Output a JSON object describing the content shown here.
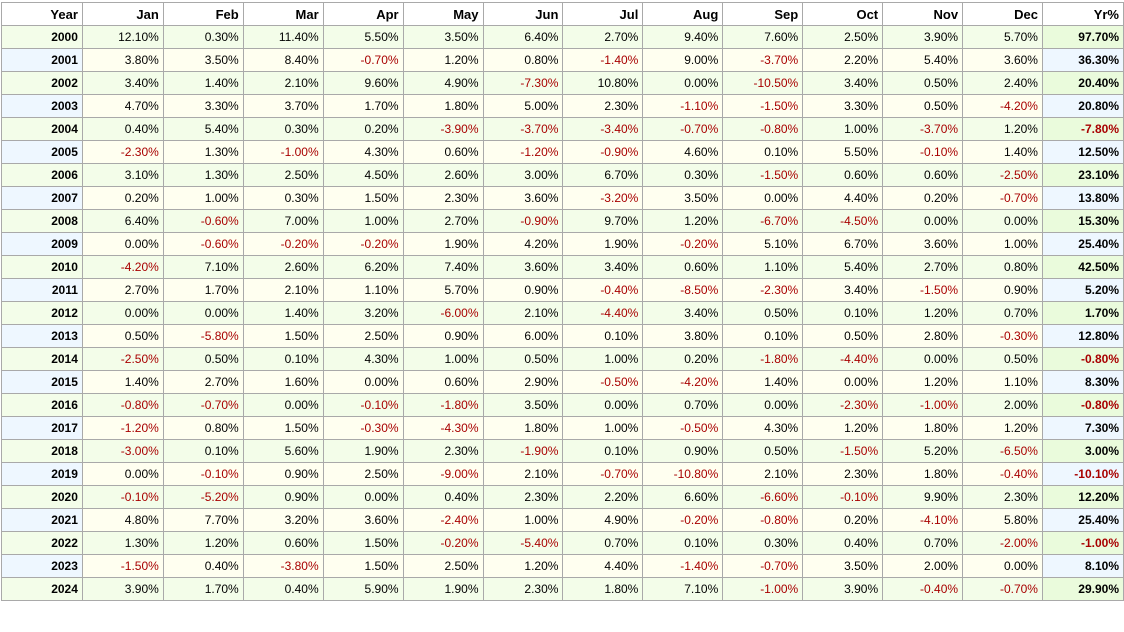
{
  "table": {
    "columns": [
      "Year",
      "Jan",
      "Feb",
      "Mar",
      "Apr",
      "May",
      "Jun",
      "Jul",
      "Aug",
      "Sep",
      "Oct",
      "Nov",
      "Dec",
      "Yr%"
    ],
    "rows": [
      {
        "year": "2000",
        "months": [
          "12.10%",
          "0.30%",
          "11.40%",
          "5.50%",
          "3.50%",
          "6.40%",
          "2.70%",
          "9.40%",
          "7.60%",
          "2.50%",
          "3.90%",
          "5.70%"
        ],
        "total": "97.70%"
      },
      {
        "year": "2001",
        "months": [
          "3.80%",
          "3.50%",
          "8.40%",
          "-0.70%",
          "1.20%",
          "0.80%",
          "-1.40%",
          "9.00%",
          "-3.70%",
          "2.20%",
          "5.40%",
          "3.60%"
        ],
        "total": "36.30%"
      },
      {
        "year": "2002",
        "months": [
          "3.40%",
          "1.40%",
          "2.10%",
          "9.60%",
          "4.90%",
          "-7.30%",
          "10.80%",
          "0.00%",
          "-10.50%",
          "3.40%",
          "0.50%",
          "2.40%"
        ],
        "total": "20.40%"
      },
      {
        "year": "2003",
        "months": [
          "4.70%",
          "3.30%",
          "3.70%",
          "1.70%",
          "1.80%",
          "5.00%",
          "2.30%",
          "-1.10%",
          "-1.50%",
          "3.30%",
          "0.50%",
          "-4.20%"
        ],
        "total": "20.80%"
      },
      {
        "year": "2004",
        "months": [
          "0.40%",
          "5.40%",
          "0.30%",
          "0.20%",
          "-3.90%",
          "-3.70%",
          "-3.40%",
          "-0.70%",
          "-0.80%",
          "1.00%",
          "-3.70%",
          "1.20%"
        ],
        "total": "-7.80%"
      },
      {
        "year": "2005",
        "months": [
          "-2.30%",
          "1.30%",
          "-1.00%",
          "4.30%",
          "0.60%",
          "-1.20%",
          "-0.90%",
          "4.60%",
          "0.10%",
          "5.50%",
          "-0.10%",
          "1.40%"
        ],
        "total": "12.50%"
      },
      {
        "year": "2006",
        "months": [
          "3.10%",
          "1.30%",
          "2.50%",
          "4.50%",
          "2.60%",
          "3.00%",
          "6.70%",
          "0.30%",
          "-1.50%",
          "0.60%",
          "0.60%",
          "-2.50%"
        ],
        "total": "23.10%"
      },
      {
        "year": "2007",
        "months": [
          "0.20%",
          "1.00%",
          "0.30%",
          "1.50%",
          "2.30%",
          "3.60%",
          "-3.20%",
          "3.50%",
          "0.00%",
          "4.40%",
          "0.20%",
          "-0.70%"
        ],
        "total": "13.80%"
      },
      {
        "year": "2008",
        "months": [
          "6.40%",
          "-0.60%",
          "7.00%",
          "1.00%",
          "2.70%",
          "-0.90%",
          "9.70%",
          "1.20%",
          "-6.70%",
          "-4.50%",
          "0.00%",
          "0.00%"
        ],
        "total": "15.30%"
      },
      {
        "year": "2009",
        "months": [
          "0.00%",
          "-0.60%",
          "-0.20%",
          "-0.20%",
          "1.90%",
          "4.20%",
          "1.90%",
          "-0.20%",
          "5.10%",
          "6.70%",
          "3.60%",
          "1.00%"
        ],
        "total": "25.40%"
      },
      {
        "year": "2010",
        "months": [
          "-4.20%",
          "7.10%",
          "2.60%",
          "6.20%",
          "7.40%",
          "3.60%",
          "3.40%",
          "0.60%",
          "1.10%",
          "5.40%",
          "2.70%",
          "0.80%"
        ],
        "total": "42.50%"
      },
      {
        "year": "2011",
        "months": [
          "2.70%",
          "1.70%",
          "2.10%",
          "1.10%",
          "5.70%",
          "0.90%",
          "-0.40%",
          "-8.50%",
          "-2.30%",
          "3.40%",
          "-1.50%",
          "0.90%"
        ],
        "total": "5.20%"
      },
      {
        "year": "2012",
        "months": [
          "0.00%",
          "0.00%",
          "1.40%",
          "3.20%",
          "-6.00%",
          "2.10%",
          "-4.40%",
          "3.40%",
          "0.50%",
          "0.10%",
          "1.20%",
          "0.70%"
        ],
        "total": "1.70%"
      },
      {
        "year": "2013",
        "months": [
          "0.50%",
          "-5.80%",
          "1.50%",
          "2.50%",
          "0.90%",
          "6.00%",
          "0.10%",
          "3.80%",
          "0.10%",
          "0.50%",
          "2.80%",
          "-0.30%"
        ],
        "total": "12.80%"
      },
      {
        "year": "2014",
        "months": [
          "-2.50%",
          "0.50%",
          "0.10%",
          "4.30%",
          "1.00%",
          "0.50%",
          "1.00%",
          "0.20%",
          "-1.80%",
          "-4.40%",
          "0.00%",
          "0.50%"
        ],
        "total": "-0.80%"
      },
      {
        "year": "2015",
        "months": [
          "1.40%",
          "2.70%",
          "1.60%",
          "0.00%",
          "0.60%",
          "2.90%",
          "-0.50%",
          "-4.20%",
          "1.40%",
          "0.00%",
          "1.20%",
          "1.10%"
        ],
        "total": "8.30%"
      },
      {
        "year": "2016",
        "months": [
          "-0.80%",
          "-0.70%",
          "0.00%",
          "-0.10%",
          "-1.80%",
          "3.50%",
          "0.00%",
          "0.70%",
          "0.00%",
          "-2.30%",
          "-1.00%",
          "2.00%"
        ],
        "total": "-0.80%"
      },
      {
        "year": "2017",
        "months": [
          "-1.20%",
          "0.80%",
          "1.50%",
          "-0.30%",
          "-4.30%",
          "1.80%",
          "1.00%",
          "-0.50%",
          "4.30%",
          "1.20%",
          "1.80%",
          "1.20%"
        ],
        "total": "7.30%"
      },
      {
        "year": "2018",
        "months": [
          "-3.00%",
          "0.10%",
          "5.60%",
          "1.90%",
          "2.30%",
          "-1.90%",
          "0.10%",
          "0.90%",
          "0.50%",
          "-1.50%",
          "5.20%",
          "-6.50%"
        ],
        "total": "3.00%"
      },
      {
        "year": "2019",
        "months": [
          "0.00%",
          "-0.10%",
          "0.90%",
          "2.50%",
          "-9.00%",
          "2.10%",
          "-0.70%",
          "-10.80%",
          "2.10%",
          "2.30%",
          "1.80%",
          "-0.40%"
        ],
        "total": "-10.10%"
      },
      {
        "year": "2020",
        "months": [
          "-0.10%",
          "-5.20%",
          "0.90%",
          "0.00%",
          "0.40%",
          "2.30%",
          "2.20%",
          "6.60%",
          "-6.60%",
          "-0.10%",
          "9.90%",
          "2.30%"
        ],
        "total": "12.20%"
      },
      {
        "year": "2021",
        "months": [
          "4.80%",
          "7.70%",
          "3.20%",
          "3.60%",
          "-2.40%",
          "1.00%",
          "4.90%",
          "-0.20%",
          "-0.80%",
          "0.20%",
          "-4.10%",
          "5.80%"
        ],
        "total": "25.40%"
      },
      {
        "year": "2022",
        "months": [
          "1.30%",
          "1.20%",
          "0.60%",
          "1.50%",
          "-0.20%",
          "-5.40%",
          "0.70%",
          "0.10%",
          "0.30%",
          "0.40%",
          "0.70%",
          "-2.00%"
        ],
        "total": "-1.00%"
      },
      {
        "year": "2023",
        "months": [
          "-1.50%",
          "0.40%",
          "-3.80%",
          "1.50%",
          "2.50%",
          "1.20%",
          "4.40%",
          "-1.40%",
          "-0.70%",
          "3.50%",
          "2.00%",
          "0.00%"
        ],
        "total": "8.10%"
      },
      {
        "year": "2024",
        "months": [
          "3.90%",
          "1.70%",
          "0.40%",
          "5.90%",
          "1.90%",
          "2.30%",
          "1.80%",
          "7.10%",
          "-1.00%",
          "3.90%",
          "-0.40%",
          "-0.70%"
        ],
        "total": "29.90%"
      }
    ]
  },
  "colors": {
    "negative_text": "#a80000",
    "row_band_a": "#f3fde9",
    "row_band_b": "#fffff0",
    "year_band_b": "#eef7ff",
    "border": "#a9a9a9"
  }
}
